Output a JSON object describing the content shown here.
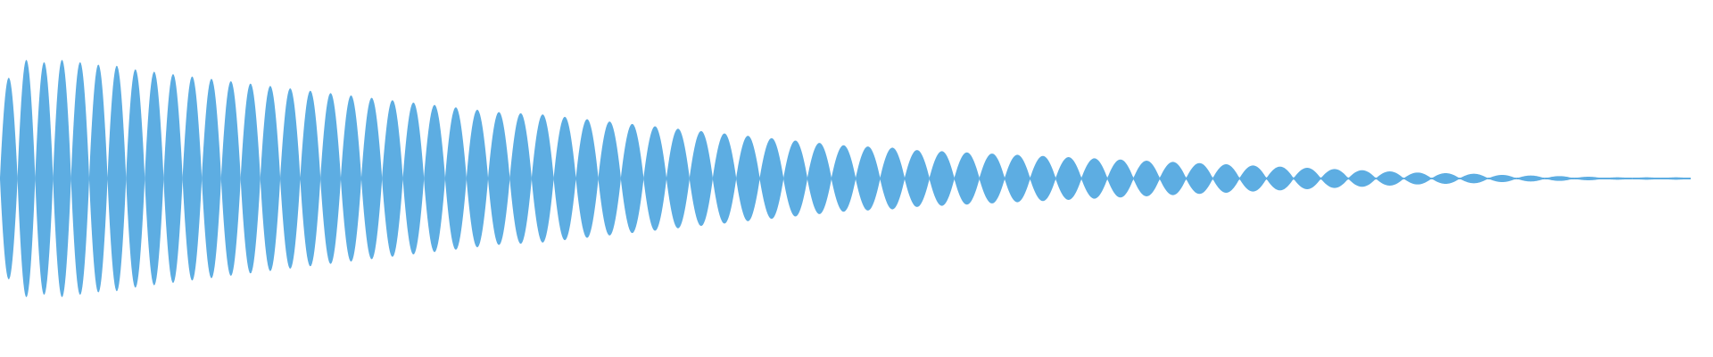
{
  "chart_data": {
    "type": "area",
    "title": "",
    "xlabel": "",
    "ylabel": "",
    "ylim": [
      -1,
      1
    ],
    "grid": false,
    "color": "#5dade2",
    "lobe_peak_amplitudes": [
      0.85,
      1.0,
      0.98,
      1.0,
      0.98,
      0.96,
      0.95,
      0.92,
      0.9,
      0.88,
      0.86,
      0.84,
      0.82,
      0.8,
      0.78,
      0.76,
      0.74,
      0.72,
      0.7,
      0.68,
      0.66,
      0.64,
      0.62,
      0.6,
      0.58,
      0.56,
      0.55,
      0.54,
      0.52,
      0.5,
      0.48,
      0.46,
      0.44,
      0.42,
      0.4,
      0.38,
      0.36,
      0.34,
      0.32,
      0.3,
      0.28,
      0.27,
      0.26,
      0.24,
      0.23,
      0.22,
      0.21,
      0.2,
      0.19,
      0.18,
      0.17,
      0.16,
      0.15,
      0.14,
      0.13,
      0.12,
      0.11,
      0.1,
      0.09,
      0.08,
      0.07,
      0.06,
      0.05,
      0.045,
      0.04,
      0.03,
      0.025,
      0.02,
      0.015,
      0.01,
      0.01,
      0.01
    ]
  }
}
